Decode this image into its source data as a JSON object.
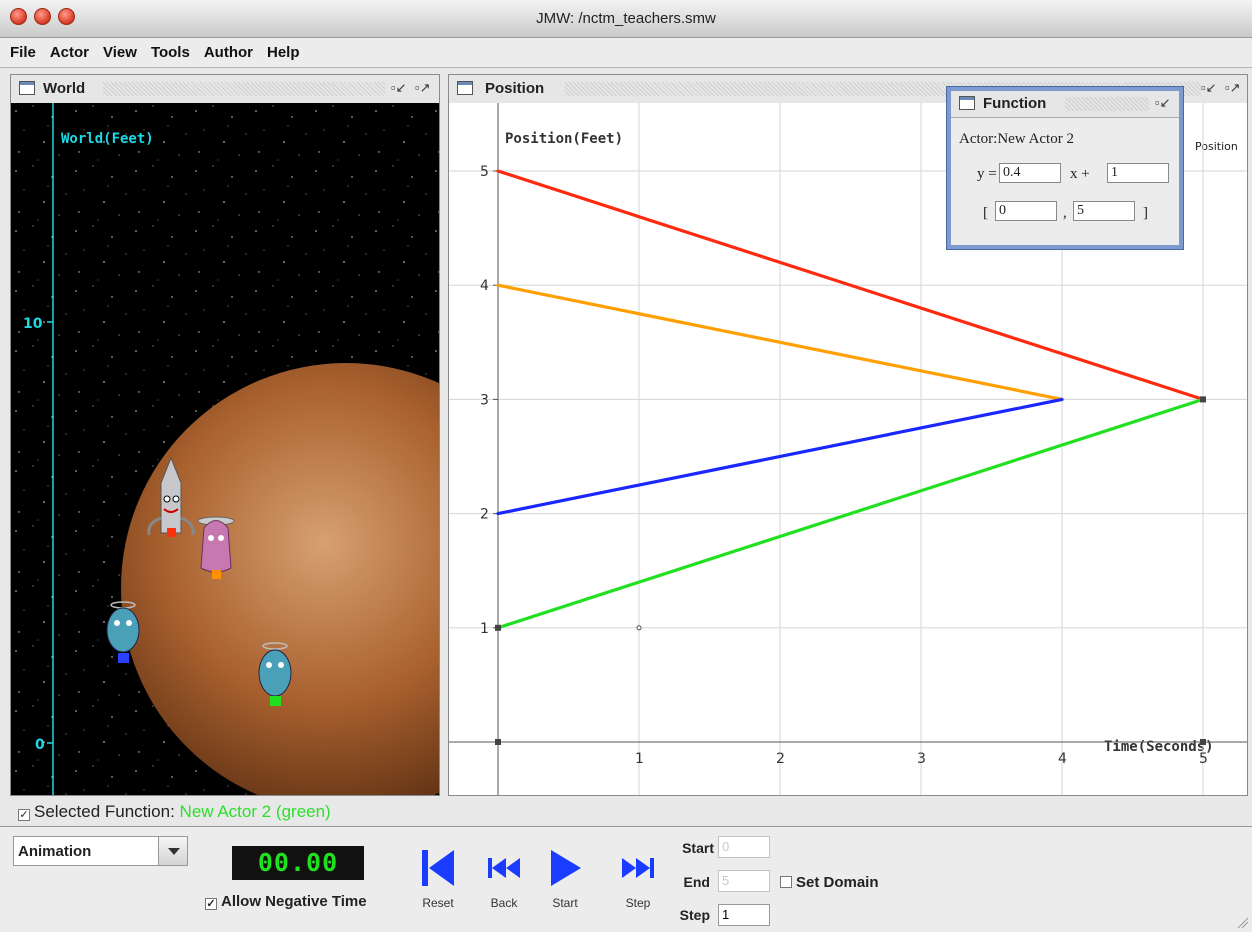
{
  "window": {
    "title": "JMW: /nctm_teachers.smw"
  },
  "menu": [
    "File",
    "Actor",
    "View",
    "Tools",
    "Author",
    "Help"
  ],
  "world_panel": {
    "title": "World",
    "axis_label": "World(Feet)",
    "ticks": [
      "10",
      "0"
    ]
  },
  "position_panel": {
    "title": "Position",
    "corner_label": "Position",
    "chart_data": {
      "type": "line",
      "ylabel": "Position(Feet)",
      "xlabel": "Time(Seconds)",
      "xlim": [
        0,
        5
      ],
      "ylim": [
        0,
        5
      ],
      "x_ticks": [
        "1",
        "2",
        "3",
        "4",
        "5"
      ],
      "y_ticks": [
        "1",
        "2",
        "3",
        "4",
        "5"
      ],
      "series": [
        {
          "color": "#ff2a10",
          "x": [
            0,
            5
          ],
          "y": [
            5,
            3
          ]
        },
        {
          "color": "#ffa000",
          "x": [
            0,
            4
          ],
          "y": [
            4,
            3
          ]
        },
        {
          "color": "#1a28ff",
          "x": [
            0,
            4
          ],
          "y": [
            2,
            3
          ]
        },
        {
          "color": "#20e020",
          "x": [
            0,
            5
          ],
          "y": [
            1,
            3
          ]
        }
      ]
    }
  },
  "function_dialog": {
    "title": "Function",
    "actor_label": "Actor:New Actor 2",
    "y_label": "y =",
    "slope": "0.4",
    "x_label": "x +",
    "intercept": "1",
    "open_bracket": "[",
    "domain_start": "0",
    "comma": ",",
    "domain_end": "5",
    "close_bracket": "]"
  },
  "selected_function": {
    "label": "Selected Function:",
    "value": "New Actor 2 (green)"
  },
  "controls": {
    "mode": "Animation",
    "clock": "00.00",
    "allow_negative_label": "Allow Negative Time",
    "reset_label": "Reset",
    "back_label": "Back",
    "start_label": "Start",
    "step_label": "Step",
    "domain": {
      "start_label": "Start",
      "start_value": "0",
      "end_label": "End",
      "end_value": "5",
      "step_label": "Step",
      "step_value": "1",
      "set_domain_label": "Set Domain"
    }
  },
  "colors": {
    "accent_blue": "#1a3cff",
    "clock_green": "#1fe11f",
    "world_axis": "#1fd8e6"
  }
}
